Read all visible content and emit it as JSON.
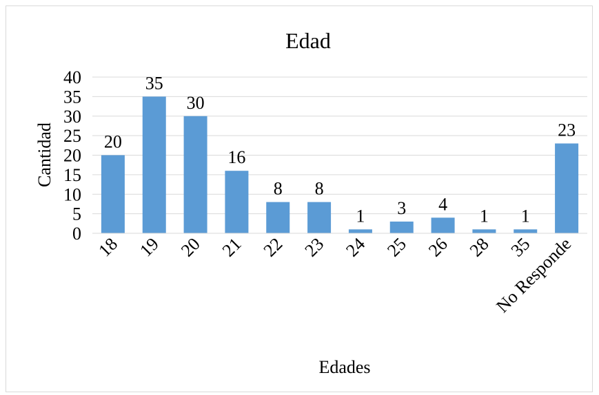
{
  "chart_data": {
    "type": "bar",
    "title": "Edad",
    "xlabel": "Edades",
    "ylabel": "Cantidad",
    "categories": [
      "18",
      "19",
      "20",
      "21",
      "22",
      "23",
      "24",
      "25",
      "26",
      "28",
      "35",
      "No Responde"
    ],
    "values": [
      20,
      35,
      30,
      16,
      8,
      8,
      1,
      3,
      4,
      1,
      1,
      23
    ],
    "ylim": [
      0,
      40
    ],
    "yticks": [
      0,
      5,
      10,
      15,
      20,
      25,
      30,
      35,
      40
    ],
    "grid": true,
    "legend": "none",
    "bar_color": "#5b9bd5",
    "grid_color": "#d9d9d9"
  }
}
